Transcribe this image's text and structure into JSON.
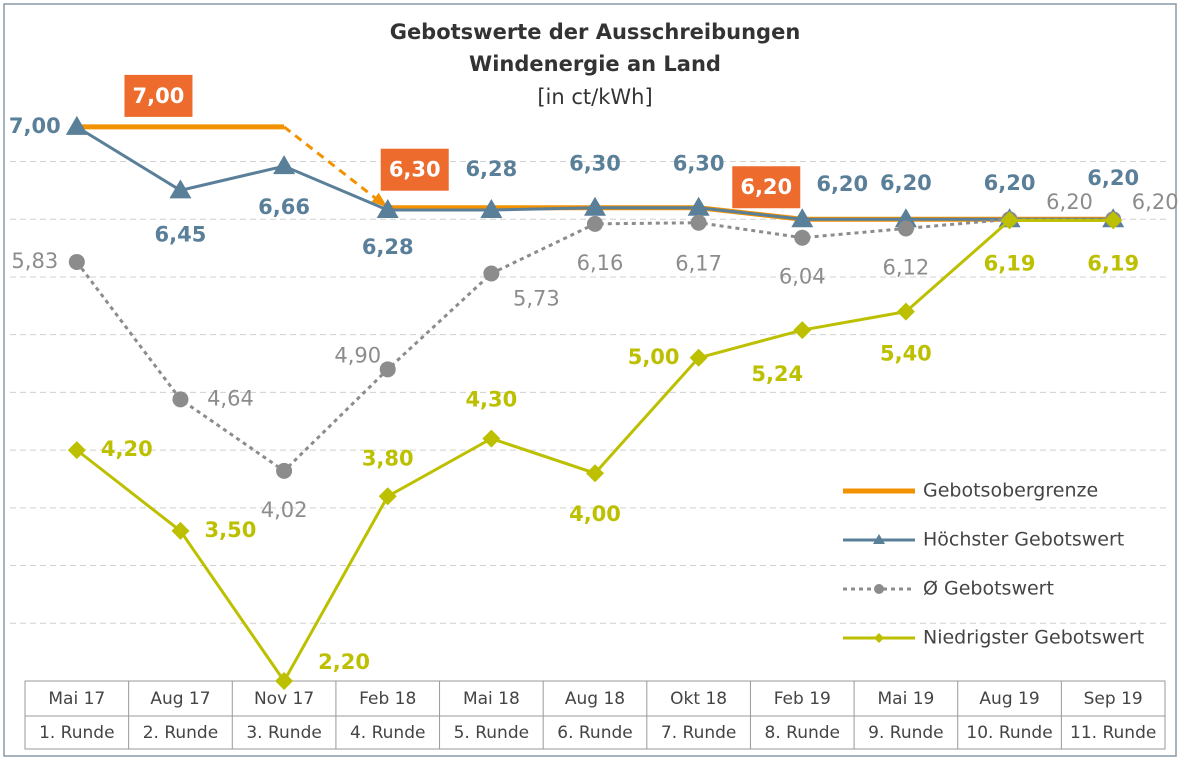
{
  "chart_data": {
    "type": "line",
    "title": [
      "Gebotswerte der Ausschreibungen",
      "Windenergie an Land"
    ],
    "subtitle": "[in ct/kWh]",
    "categories": [
      "Mai 17",
      "Aug 17",
      "Nov 17",
      "Feb 18",
      "Mai 18",
      "Aug 18",
      "Okt 18",
      "Feb 19",
      "Mai 19",
      "Aug 19",
      "Sep 19"
    ],
    "rounds": [
      "1. Runde",
      "2. Runde",
      "3. Runde",
      "4. Runde",
      "5. Runde",
      "6. Runde",
      "7. Runde",
      "8. Runde",
      "9. Runde",
      "10. Runde",
      "11. Runde"
    ],
    "ylim": [
      2.2,
      7.9
    ],
    "yticks": [
      2.7,
      3.2,
      3.7,
      4.2,
      4.7,
      5.2,
      5.7,
      6.2,
      6.7
    ],
    "grid": true,
    "legend": "right",
    "series": [
      {
        "name": "Gebotsobergrenze",
        "color": "#f39200",
        "label_color": "#ec6b2d",
        "values": [
          7.0,
          7.0,
          7.0,
          6.3,
          6.3,
          6.3,
          6.3,
          6.2,
          6.2,
          6.2,
          6.2
        ],
        "value_labels": [
          null,
          "7,00",
          null,
          "6,30",
          null,
          null,
          null,
          "6,20",
          null,
          null,
          null
        ]
      },
      {
        "name": "Höchster Gebotswert",
        "color": "#5a7f99",
        "values": [
          7.0,
          6.45,
          6.66,
          6.28,
          6.28,
          6.3,
          6.3,
          6.2,
          6.2,
          6.2,
          6.2
        ],
        "value_labels": [
          "7,00",
          "6,45",
          "6,66",
          "6,28",
          "6,28",
          "6,30",
          "6,30",
          "6,20",
          "6,20",
          "6,20",
          "6,20"
        ]
      },
      {
        "name": "Ø Gebotswert",
        "color": "#8c8c8c",
        "values": [
          5.83,
          4.64,
          4.02,
          4.9,
          5.73,
          6.16,
          6.17,
          6.04,
          6.12,
          6.2,
          6.2
        ],
        "value_labels": [
          "5,83",
          "4,64",
          "4,02",
          "4,90",
          "5,73",
          "6,16",
          "6,17",
          "6,04",
          "6,12",
          "6,20",
          "6,20"
        ]
      },
      {
        "name": "Niedrigster Gebotswert",
        "color": "#bcc000",
        "values": [
          4.2,
          3.5,
          2.2,
          3.8,
          4.3,
          4.0,
          5.0,
          5.24,
          5.4,
          6.19,
          6.19
        ],
        "value_labels": [
          "4,20",
          "3,50",
          "2,20",
          "3,80",
          "4,30",
          "4,00",
          "5,00",
          "5,24",
          "5,40",
          "6,19",
          "6,19"
        ]
      }
    ]
  }
}
